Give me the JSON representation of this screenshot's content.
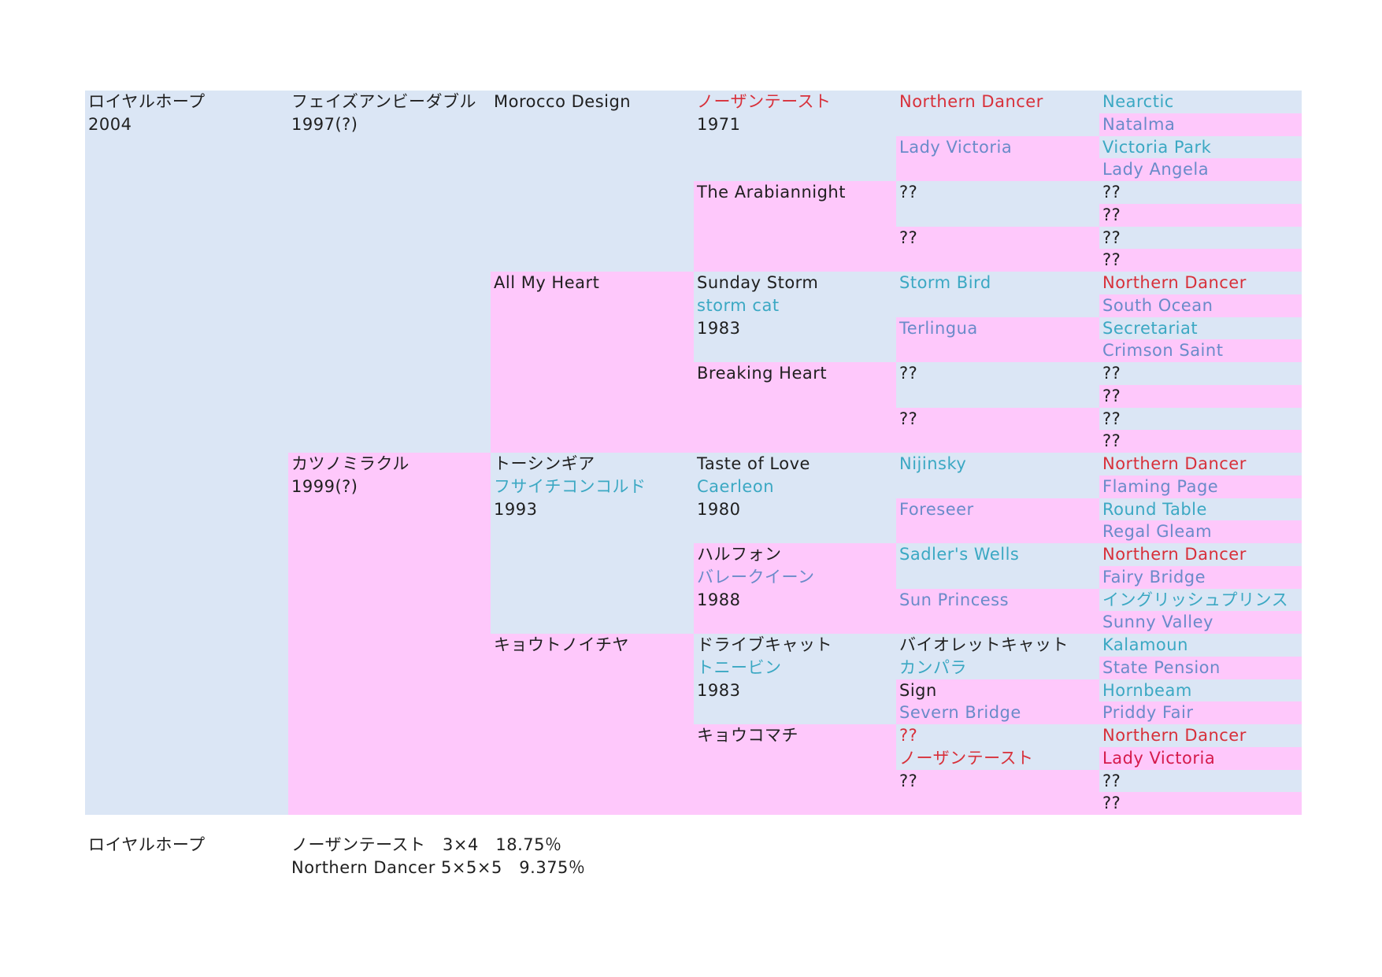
{
  "colors": {
    "blue_cell": "#dbe6f5",
    "pink_cell": "#fec8fb",
    "text_black": "#1f1f1f",
    "text_red": "#d8303a",
    "text_teal": "#3ba8c3",
    "text_slate": "#6a8bc9",
    "text_crimson": "#d51a4c"
  },
  "pedigree": {
    "horse": {
      "name": "ロイヤルホープ",
      "year": "2004"
    },
    "sire": {
      "name": "フェイズアンビーダブル",
      "year": "1997(?)"
    },
    "dam": {
      "name": "カツノミラクル",
      "year": "1999(?)"
    },
    "sire_sire": {
      "name": "Morocco Design"
    },
    "sire_dam": {
      "name": "All My Heart"
    },
    "dam_sire": {
      "name": "トーシンギア",
      "line2": "フサイチコンコルド",
      "year": "1993"
    },
    "dam_dam": {
      "name": "キョウトノイチヤ"
    },
    "gen4": [
      {
        "name": "ノーザンテースト",
        "year": "1971"
      },
      {
        "name": "The Arabiannight"
      },
      {
        "name": "Sunday Storm",
        "line2": "storm cat",
        "year": "1983"
      },
      {
        "name": "Breaking Heart"
      },
      {
        "name": "Taste of Love",
        "line2": "Caerleon",
        "year": "1980"
      },
      {
        "name": "ハルフォン",
        "line2": "バレークイーン",
        "year": "1988"
      },
      {
        "name": "ドライブキャット",
        "line2": "トニービン",
        "year": "1983"
      },
      {
        "name": "キョウコマチ"
      }
    ],
    "gen5": [
      {
        "name": "Northern Dancer"
      },
      {
        "name": "Lady Victoria"
      },
      {
        "name": "??"
      },
      {
        "name": "??"
      },
      {
        "name": "Storm Bird"
      },
      {
        "name": "Terlingua"
      },
      {
        "name": "??"
      },
      {
        "name": "??"
      },
      {
        "name": "Nijinsky"
      },
      {
        "name": "Foreseer"
      },
      {
        "name": "Sadler's Wells"
      },
      {
        "name": "Sun Princess"
      },
      {
        "name": "バイオレットキャット",
        "line2": "カンパラ"
      },
      {
        "name": "Sign",
        "line2": "Severn Bridge"
      },
      {
        "name": "??",
        "line2": "ノーザンテースト"
      },
      {
        "name": "??"
      }
    ],
    "gen6": [
      "Nearctic",
      "Natalma",
      "Victoria Park",
      "Lady Angela",
      "??",
      "??",
      "??",
      "??",
      "Northern Dancer",
      "South Ocean",
      "Secretariat",
      "Crimson Saint",
      "??",
      "??",
      "??",
      "??",
      "Northern Dancer",
      "Flaming Page",
      "Round Table",
      "Regal Gleam",
      "Northern Dancer",
      "Fairy Bridge",
      "イングリッシュプリンス",
      "Sunny Valley",
      "Kalamoun",
      "State Pension",
      "Hornbeam",
      "Priddy Fair",
      "Northern Dancer",
      "Lady Victoria",
      "??",
      "??"
    ]
  },
  "summary": {
    "horse": "ロイヤルホープ",
    "line1": "ノーザンテースト　3×4　18.75％",
    "line2": "Northern Dancer 5×5×5　9.375％"
  }
}
